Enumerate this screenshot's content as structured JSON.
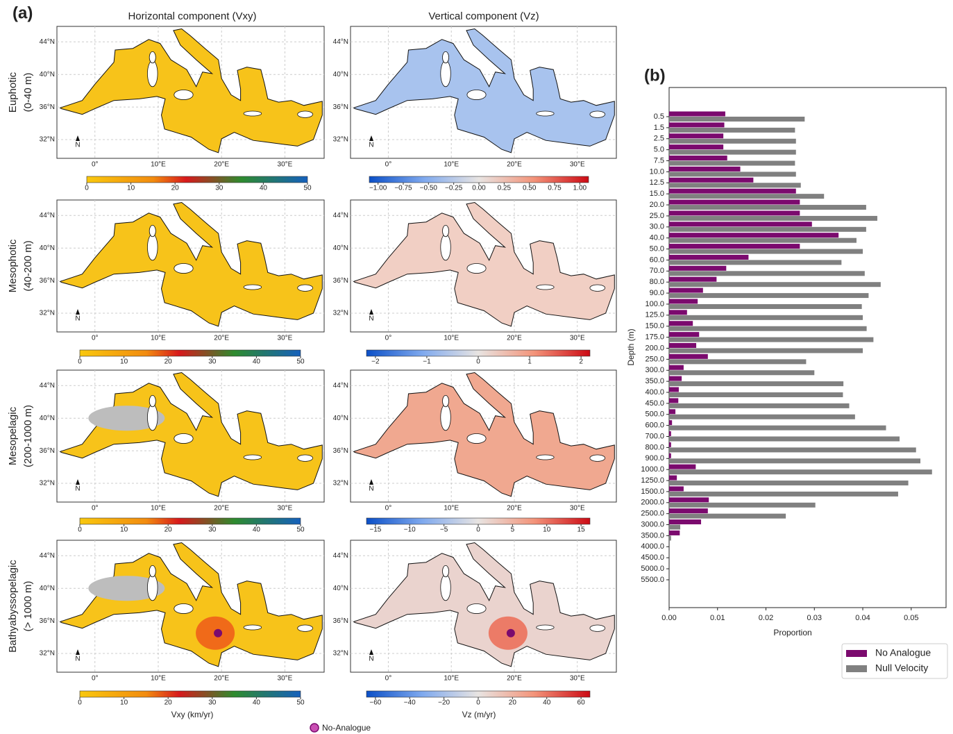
{
  "panel_a": {
    "label": "(a)",
    "column_titles": [
      "Horizontal component (Vxy)",
      "Vertical component (Vz)"
    ],
    "rows": [
      {
        "name": "Euphotic",
        "range": "(0-40 m)",
        "vz_ticks": [
          "−1.00",
          "−0.75",
          "−0.50",
          "−0.25",
          "0.00",
          "0.25",
          "0.50",
          "0.75",
          "1.00"
        ]
      },
      {
        "name": "Mesophotic",
        "range": "(40-200 m)",
        "vz_ticks": [
          "−2",
          "−1",
          "0",
          "1",
          "2"
        ]
      },
      {
        "name": "Mesopelagic",
        "range": "(200-1000 m)",
        "vz_ticks": [
          "−15",
          "−10",
          "−5",
          "0",
          "5",
          "10",
          "15"
        ]
      },
      {
        "name": "Bathyabyssopelagic",
        "range": "(> 1000 m)",
        "vz_ticks": [
          "−60",
          "−40",
          "−20",
          "0",
          "20",
          "40",
          "60"
        ]
      }
    ],
    "lat_ticks": [
      "44°N",
      "40°N",
      "36°N",
      "32°N"
    ],
    "lon_ticks": [
      "0°",
      "10°E",
      "20°E",
      "30°E"
    ],
    "north_label": "N",
    "vxy_ticks": [
      "0",
      "10",
      "20",
      "30",
      "40",
      "50"
    ],
    "vxy_label": "Vxy (km/yr)",
    "vz_label": "Vz (m/yr)",
    "legend": "No-Analogue"
  },
  "chart_data": {
    "type": "bar",
    "orientation": "horizontal",
    "panel_label": "(b)",
    "y_label": "Depth (m)",
    "x_label": "Proportion",
    "categories": [
      "0.5",
      "1.5",
      "2.5",
      "5.0",
      "7.5",
      "10.0",
      "12.5",
      "15.0",
      "20.0",
      "25.0",
      "30.0",
      "40.0",
      "50.0",
      "60.0",
      "70.0",
      "80.0",
      "90.0",
      "100.0",
      "125.0",
      "150.0",
      "175.0",
      "200.0",
      "250.0",
      "300.0",
      "350.0",
      "400.0",
      "450.0",
      "500.0",
      "600.0",
      "700.0",
      "800.0",
      "900.0",
      "1000.0",
      "1250.0",
      "1500.0",
      "2000.0",
      "2500.0",
      "3000.0",
      "3500.0",
      "4000.0",
      "4500.0",
      "5000.0",
      "5500.0"
    ],
    "series": [
      {
        "name": "No Analogue",
        "color": "#7b0a6e",
        "values": [
          0.0116,
          0.0114,
          0.0112,
          0.0112,
          0.012,
          0.0147,
          0.0174,
          0.0262,
          0.027,
          0.027,
          0.0295,
          0.035,
          0.027,
          0.0164,
          0.0118,
          0.0098,
          0.007,
          0.0059,
          0.0037,
          0.0049,
          0.0062,
          0.0056,
          0.008,
          0.003,
          0.0026,
          0.002,
          0.0019,
          0.0013,
          0.0006,
          0.0004,
          0.0004,
          0.0004,
          0.0055,
          0.0016,
          0.003,
          0.0082,
          0.008,
          0.0066,
          0.0022,
          0,
          0,
          0,
          0
        ]
      },
      {
        "name": "Null Velocity",
        "color": "#808080",
        "values": [
          0.028,
          0.026,
          0.0262,
          0.0262,
          0.026,
          0.0262,
          0.0272,
          0.032,
          0.0407,
          0.043,
          0.0407,
          0.0387,
          0.04,
          0.0356,
          0.0404,
          0.0437,
          0.0412,
          0.0398,
          0.04,
          0.0408,
          0.0422,
          0.04,
          0.0283,
          0.03,
          0.036,
          0.0359,
          0.0372,
          0.0384,
          0.0448,
          0.0476,
          0.051,
          0.0519,
          0.0543,
          0.0494,
          0.0473,
          0.0302,
          0.0241,
          0.0023,
          0.0004,
          0,
          0,
          0,
          0
        ]
      }
    ],
    "xlim": [
      0,
      0.0572
    ],
    "xticks": [
      {
        "value": 0,
        "label": "0.00"
      },
      0.01,
      0.02,
      0.03,
      0.04,
      0.05
    ],
    "legend_position": "lower right"
  }
}
